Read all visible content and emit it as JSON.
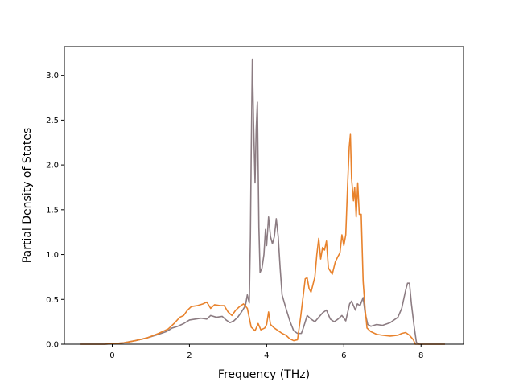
{
  "chart_data": {
    "type": "line",
    "title": "",
    "xlabel": "Frequency (THz)",
    "ylabel": "Partial Density of States",
    "xlim": [
      -1.24,
      9.1
    ],
    "ylim": [
      0,
      3.32
    ],
    "xticks": [
      0,
      2,
      4,
      6,
      8
    ],
    "yticks": [
      0.0,
      0.5,
      1.0,
      1.5,
      2.0,
      2.5,
      3.0
    ],
    "xtick_labels": [
      "0",
      "2",
      "4",
      "6",
      "8"
    ],
    "ytick_labels": [
      "0.0",
      "0.5",
      "1.0",
      "1.5",
      "2.0",
      "2.5",
      "3.0"
    ],
    "grid": false,
    "legend": "none",
    "series": [
      {
        "color": "#8c7c82",
        "points": [
          [
            -0.82,
            0
          ],
          [
            -0.2,
            0
          ],
          [
            0,
            0.005
          ],
          [
            0.3,
            0.015
          ],
          [
            0.6,
            0.04
          ],
          [
            0.9,
            0.07
          ],
          [
            1.2,
            0.11
          ],
          [
            1.4,
            0.14
          ],
          [
            1.55,
            0.18
          ],
          [
            1.7,
            0.2
          ],
          [
            1.85,
            0.23
          ],
          [
            2.0,
            0.27
          ],
          [
            2.15,
            0.28
          ],
          [
            2.3,
            0.29
          ],
          [
            2.45,
            0.28
          ],
          [
            2.55,
            0.32
          ],
          [
            2.7,
            0.3
          ],
          [
            2.85,
            0.31
          ],
          [
            2.95,
            0.27
          ],
          [
            3.05,
            0.24
          ],
          [
            3.15,
            0.26
          ],
          [
            3.25,
            0.3
          ],
          [
            3.35,
            0.36
          ],
          [
            3.45,
            0.43
          ],
          [
            3.5,
            0.55
          ],
          [
            3.55,
            0.46
          ],
          [
            3.58,
            1.2
          ],
          [
            3.6,
            2.1
          ],
          [
            3.63,
            3.18
          ],
          [
            3.66,
            2.5
          ],
          [
            3.7,
            1.8
          ],
          [
            3.73,
            2.4
          ],
          [
            3.76,
            2.7
          ],
          [
            3.8,
            1.3
          ],
          [
            3.83,
            0.8
          ],
          [
            3.88,
            0.85
          ],
          [
            3.93,
            1.0
          ],
          [
            3.97,
            1.28
          ],
          [
            4.0,
            1.1
          ],
          [
            4.05,
            1.42
          ],
          [
            4.1,
            1.2
          ],
          [
            4.15,
            1.12
          ],
          [
            4.2,
            1.2
          ],
          [
            4.25,
            1.4
          ],
          [
            4.3,
            1.2
          ],
          [
            4.35,
            0.85
          ],
          [
            4.4,
            0.55
          ],
          [
            4.5,
            0.4
          ],
          [
            4.6,
            0.26
          ],
          [
            4.7,
            0.15
          ],
          [
            4.8,
            0.12
          ],
          [
            4.9,
            0.12
          ],
          [
            4.95,
            0.18
          ],
          [
            5.0,
            0.25
          ],
          [
            5.05,
            0.32
          ],
          [
            5.15,
            0.28
          ],
          [
            5.25,
            0.25
          ],
          [
            5.35,
            0.3
          ],
          [
            5.45,
            0.35
          ],
          [
            5.55,
            0.38
          ],
          [
            5.65,
            0.28
          ],
          [
            5.75,
            0.25
          ],
          [
            5.85,
            0.28
          ],
          [
            5.95,
            0.32
          ],
          [
            6.05,
            0.26
          ],
          [
            6.15,
            0.45
          ],
          [
            6.2,
            0.48
          ],
          [
            6.3,
            0.38
          ],
          [
            6.35,
            0.45
          ],
          [
            6.42,
            0.43
          ],
          [
            6.5,
            0.52
          ],
          [
            6.55,
            0.35
          ],
          [
            6.62,
            0.22
          ],
          [
            6.7,
            0.2
          ],
          [
            6.85,
            0.22
          ],
          [
            7.0,
            0.21
          ],
          [
            7.2,
            0.24
          ],
          [
            7.4,
            0.3
          ],
          [
            7.5,
            0.4
          ],
          [
            7.6,
            0.6
          ],
          [
            7.65,
            0.68
          ],
          [
            7.7,
            0.68
          ],
          [
            7.75,
            0.45
          ],
          [
            7.82,
            0.2
          ],
          [
            7.88,
            0.02
          ],
          [
            7.95,
            0
          ],
          [
            8.62,
            0
          ]
        ]
      },
      {
        "color": "#e8822c",
        "points": [
          [
            -0.82,
            0
          ],
          [
            -0.2,
            0
          ],
          [
            0,
            0.005
          ],
          [
            0.3,
            0.015
          ],
          [
            0.6,
            0.04
          ],
          [
            0.9,
            0.07
          ],
          [
            1.2,
            0.12
          ],
          [
            1.45,
            0.17
          ],
          [
            1.6,
            0.23
          ],
          [
            1.75,
            0.3
          ],
          [
            1.85,
            0.32
          ],
          [
            1.95,
            0.38
          ],
          [
            2.05,
            0.42
          ],
          [
            2.2,
            0.43
          ],
          [
            2.35,
            0.45
          ],
          [
            2.45,
            0.47
          ],
          [
            2.55,
            0.4
          ],
          [
            2.65,
            0.44
          ],
          [
            2.8,
            0.43
          ],
          [
            2.9,
            0.43
          ],
          [
            3.0,
            0.36
          ],
          [
            3.1,
            0.32
          ],
          [
            3.2,
            0.38
          ],
          [
            3.3,
            0.42
          ],
          [
            3.4,
            0.45
          ],
          [
            3.5,
            0.4
          ],
          [
            3.6,
            0.19
          ],
          [
            3.7,
            0.15
          ],
          [
            3.78,
            0.23
          ],
          [
            3.85,
            0.16
          ],
          [
            3.95,
            0.18
          ],
          [
            4.0,
            0.22
          ],
          [
            4.05,
            0.36
          ],
          [
            4.1,
            0.22
          ],
          [
            4.2,
            0.18
          ],
          [
            4.3,
            0.15
          ],
          [
            4.4,
            0.12
          ],
          [
            4.5,
            0.1
          ],
          [
            4.6,
            0.06
          ],
          [
            4.7,
            0.04
          ],
          [
            4.8,
            0.05
          ],
          [
            4.88,
            0.3
          ],
          [
            4.95,
            0.55
          ],
          [
            5.0,
            0.73
          ],
          [
            5.05,
            0.74
          ],
          [
            5.1,
            0.62
          ],
          [
            5.15,
            0.58
          ],
          [
            5.25,
            0.75
          ],
          [
            5.3,
            1.0
          ],
          [
            5.35,
            1.18
          ],
          [
            5.4,
            0.95
          ],
          [
            5.45,
            1.08
          ],
          [
            5.5,
            1.05
          ],
          [
            5.55,
            1.15
          ],
          [
            5.6,
            0.85
          ],
          [
            5.7,
            0.78
          ],
          [
            5.78,
            0.92
          ],
          [
            5.85,
            0.98
          ],
          [
            5.9,
            1.02
          ],
          [
            5.95,
            1.22
          ],
          [
            6.0,
            1.1
          ],
          [
            6.05,
            1.22
          ],
          [
            6.1,
            1.8
          ],
          [
            6.14,
            2.2
          ],
          [
            6.17,
            2.34
          ],
          [
            6.2,
            1.85
          ],
          [
            6.25,
            1.6
          ],
          [
            6.28,
            1.75
          ],
          [
            6.32,
            1.42
          ],
          [
            6.36,
            1.8
          ],
          [
            6.4,
            1.45
          ],
          [
            6.45,
            1.45
          ],
          [
            6.5,
            0.7
          ],
          [
            6.55,
            0.4
          ],
          [
            6.6,
            0.18
          ],
          [
            6.7,
            0.14
          ],
          [
            6.85,
            0.11
          ],
          [
            7.0,
            0.1
          ],
          [
            7.2,
            0.09
          ],
          [
            7.4,
            0.1
          ],
          [
            7.5,
            0.12
          ],
          [
            7.6,
            0.13
          ],
          [
            7.7,
            0.1
          ],
          [
            7.8,
            0.05
          ],
          [
            7.85,
            0
          ],
          [
            8.62,
            0
          ]
        ]
      }
    ]
  }
}
